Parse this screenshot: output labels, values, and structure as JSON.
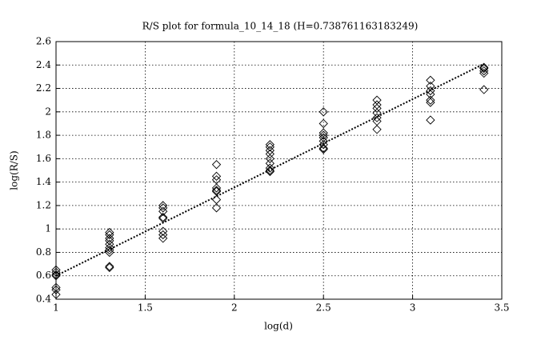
{
  "chart_data": {
    "type": "scatter",
    "title": "R/S plot for formula_10_14_18 (H=0.738761163183249)",
    "x_label": "log(d)",
    "y_label": "log(R/S)",
    "xlim": [
      1,
      3.5
    ],
    "xticks": [
      1,
      1.5,
      2,
      2.5,
      3,
      3.5
    ],
    "ylim": [
      0.4,
      2.6
    ],
    "yticks": [
      0.4,
      0.6,
      0.8,
      1,
      1.2,
      1.4,
      1.6,
      1.8,
      2,
      2.2,
      2.4,
      2.6
    ],
    "grid": true,
    "series": [
      {
        "color": "#000000",
        "marker": "diamond",
        "x": [
          1,
          1,
          1,
          1,
          1,
          1,
          1,
          1.3,
          1.3,
          1.3,
          1.3,
          1.3,
          1.3,
          1.3,
          1.3,
          1.3,
          1.3,
          1.6,
          1.6,
          1.6,
          1.6,
          1.6,
          1.6,
          1.6,
          1.6,
          1.9,
          1.9,
          1.9,
          1.9,
          1.9,
          1.9,
          1.9,
          1.9,
          2.2,
          2.2,
          2.2,
          2.2,
          2.2,
          2.2,
          2.2,
          2.2,
          2.2,
          2.5,
          2.5,
          2.5,
          2.5,
          2.5,
          2.5,
          2.5,
          2.5,
          2.5,
          2.8,
          2.8,
          2.8,
          2.8,
          2.8,
          2.8,
          2.8,
          3.1,
          3.1,
          3.1,
          3.1,
          3.1,
          3.1,
          3.1,
          3.4,
          3.4,
          3.4,
          3.4,
          3.4
        ],
        "values": [
          0.65,
          0.63,
          0.61,
          0.6,
          0.5,
          0.48,
          0.44,
          0.97,
          0.95,
          0.92,
          0.9,
          0.87,
          0.84,
          0.82,
          0.8,
          0.68,
          0.67,
          1.2,
          1.18,
          1.15,
          1.1,
          1.09,
          0.98,
          0.95,
          0.92,
          1.55,
          1.45,
          1.42,
          1.35,
          1.33,
          1.32,
          1.25,
          1.18,
          1.72,
          1.7,
          1.67,
          1.64,
          1.6,
          1.56,
          1.52,
          1.5,
          1.49,
          2.0,
          1.9,
          1.82,
          1.8,
          1.78,
          1.75,
          1.72,
          1.69,
          1.68,
          2.1,
          2.06,
          2.03,
          1.99,
          1.95,
          1.92,
          1.85,
          2.27,
          2.22,
          2.18,
          2.15,
          2.1,
          2.08,
          1.93,
          2.38,
          2.37,
          2.35,
          2.33,
          2.19
        ]
      }
    ],
    "fit_line": {
      "color": "#000000",
      "style": "dotted",
      "x": [
        1,
        3.4
      ],
      "values": [
        0.6,
        2.41
      ]
    }
  }
}
